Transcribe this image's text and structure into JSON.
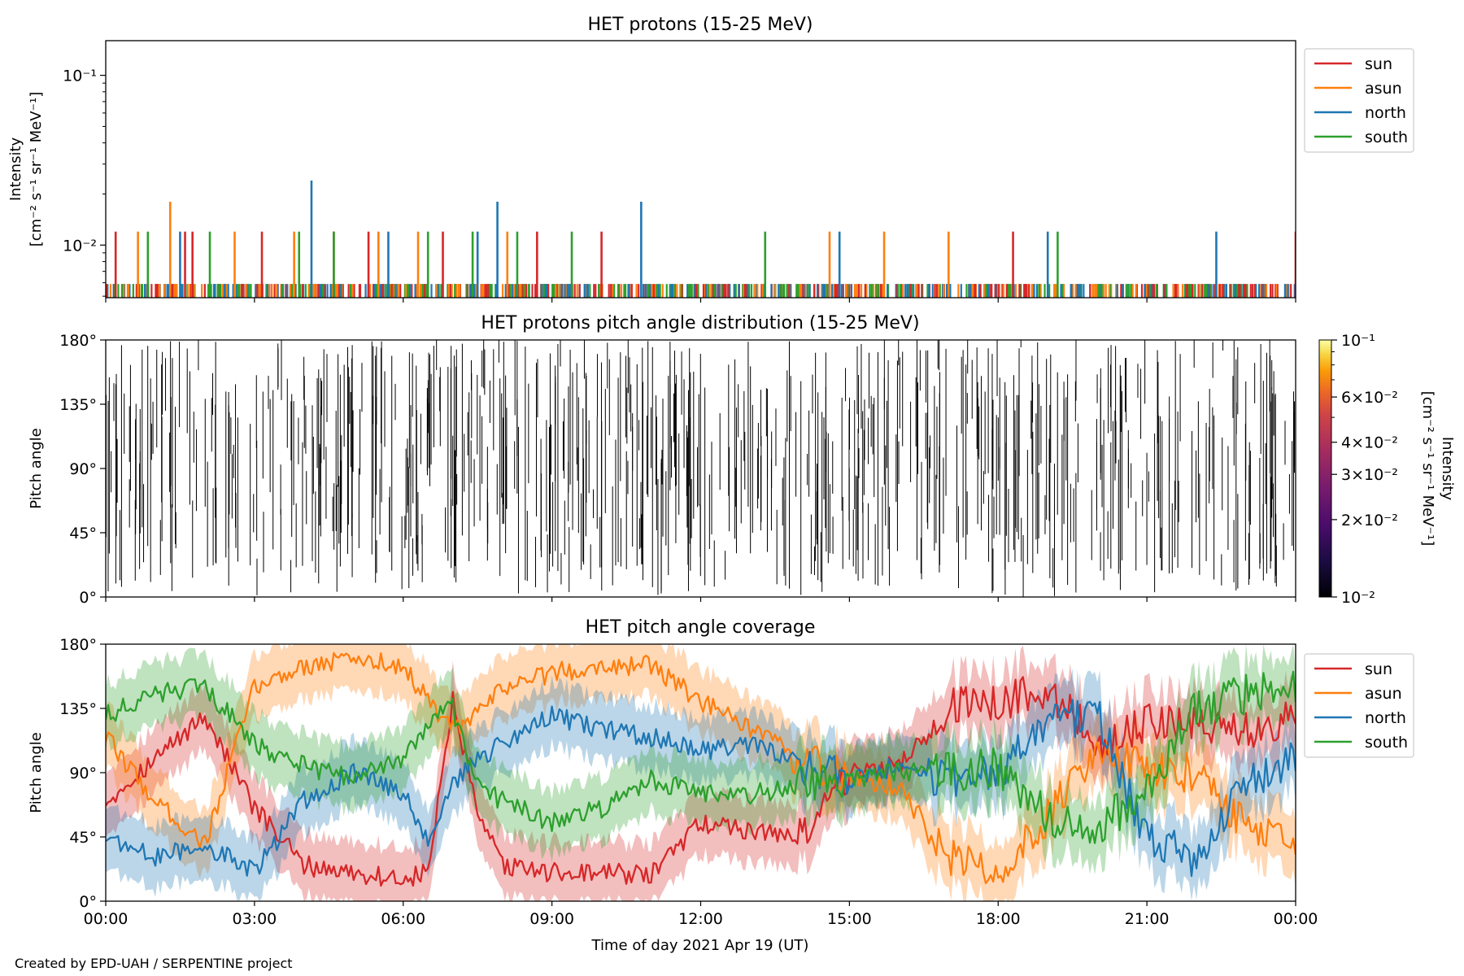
{
  "credit": "Created by EPD-UAH / SERPENTINE project",
  "xlabel": "Time of day 2021 Apr 19 (UT)",
  "xticks": [
    "00:00",
    "03:00",
    "06:00",
    "09:00",
    "12:00",
    "15:00",
    "18:00",
    "21:00",
    "00:00"
  ],
  "colors": {
    "sun": "#d62728",
    "asun": "#ff7f0e",
    "north": "#1f77b4",
    "south": "#2ca02c"
  },
  "chart_data": [
    {
      "type": "line",
      "title": "HET protons (15-25 MeV)",
      "ylabel_line1": "Intensity",
      "ylabel_line2": "[cm⁻² s⁻¹ sr⁻¹ MeV⁻¹]",
      "yscale": "log",
      "ylim": [
        0.0049,
        0.16
      ],
      "yticks": [
        {
          "value": 0.1,
          "label": "10⁻¹"
        },
        {
          "value": 0.01,
          "label": "10⁻²"
        }
      ],
      "x_unit": "hours since 2021 Apr 19 00:00 UT",
      "xlim": [
        0,
        24
      ],
      "baseline": 0.0059,
      "legend": [
        "sun",
        "asun",
        "north",
        "south"
      ],
      "legend_loc": "outside right",
      "spikes": [
        {
          "series": "sun",
          "x": [
            0.2,
            1.6,
            1.75,
            3.15,
            4.6,
            5.3,
            6.8,
            8.7,
            10.0,
            18.3,
            24.0
          ],
          "y": [
            0.012,
            0.012,
            0.012,
            0.012,
            0.012,
            0.012,
            0.012,
            0.012,
            0.012,
            0.012,
            0.012
          ]
        },
        {
          "series": "asun",
          "x": [
            0.65,
            1.3,
            2.6,
            3.8,
            5.5,
            6.3,
            8.1,
            14.6,
            15.7,
            17.0
          ],
          "y": [
            0.012,
            0.018,
            0.012,
            0.012,
            0.012,
            0.012,
            0.012,
            0.012,
            0.012,
            0.012
          ]
        },
        {
          "series": "north",
          "x": [
            1.5,
            4.15,
            5.7,
            7.5,
            7.9,
            10.8,
            14.8,
            19.0,
            22.4
          ],
          "y": [
            0.012,
            0.024,
            0.012,
            0.012,
            0.018,
            0.018,
            0.012,
            0.012,
            0.012
          ]
        },
        {
          "series": "south",
          "x": [
            0.85,
            2.1,
            3.9,
            4.6,
            6.5,
            7.4,
            8.3,
            9.4,
            13.3,
            19.2
          ],
          "y": [
            0.012,
            0.012,
            0.012,
            0.012,
            0.012,
            0.012,
            0.012,
            0.012,
            0.012,
            0.012
          ]
        }
      ]
    },
    {
      "type": "heatmap",
      "title": "HET protons pitch angle distribution (15-25 MeV)",
      "ylabel": "Pitch angle",
      "ylim": [
        0,
        180
      ],
      "yticks": [
        "0°",
        "45°",
        "90°",
        "135°",
        "180°"
      ],
      "xlim": [
        0,
        24
      ],
      "colorbar": {
        "label_line1": "Intensity",
        "label_line2": "[cm⁻² s⁻¹ sr⁻¹ MeV⁻¹]",
        "scale": "log",
        "range": [
          0.01,
          0.1
        ],
        "ticks": [
          {
            "value": 0.1,
            "label": "10⁻¹"
          },
          {
            "value": 0.06,
            "label": "6×10⁻²"
          },
          {
            "value": 0.04,
            "label": "4×10⁻²"
          },
          {
            "value": 0.03,
            "label": "3×10⁻²"
          },
          {
            "value": 0.02,
            "label": "2×10⁻²"
          },
          {
            "value": 0.01,
            "label": "10⁻²"
          }
        ],
        "colormap": "inferno"
      }
    },
    {
      "type": "line",
      "title": "HET pitch angle coverage",
      "ylabel": "Pitch angle",
      "ylim": [
        0,
        180
      ],
      "yticks": [
        "0°",
        "45°",
        "90°",
        "135°",
        "180°"
      ],
      "xlim": [
        0,
        24
      ],
      "legend": [
        "sun",
        "asun",
        "north",
        "south"
      ],
      "legend_loc": "outside right",
      "band_halfwidth_deg": 22,
      "series": [
        {
          "name": "sun",
          "x": [
            0,
            1,
            2,
            3,
            4,
            5,
            6,
            6.5,
            7,
            7.5,
            8,
            9,
            10,
            11,
            12,
            13,
            14,
            15,
            16,
            17,
            18,
            19,
            20,
            21,
            22,
            23,
            24
          ],
          "y": [
            70,
            100,
            130,
            65,
            25,
            20,
            15,
            20,
            140,
            60,
            25,
            20,
            20,
            18,
            55,
            50,
            45,
            90,
            95,
            135,
            140,
            150,
            110,
            125,
            125,
            120,
            130
          ]
        },
        {
          "name": "asun",
          "x": [
            0,
            1,
            2,
            3,
            4,
            5,
            6,
            6.5,
            7,
            7.5,
            8,
            9,
            10,
            11,
            12,
            13,
            14,
            15,
            16,
            17,
            18,
            19,
            20,
            21,
            22,
            23,
            24
          ],
          "y": [
            115,
            70,
            40,
            150,
            165,
            170,
            165,
            140,
            120,
            130,
            150,
            160,
            165,
            165,
            140,
            120,
            100,
            85,
            80,
            30,
            20,
            60,
            110,
            90,
            90,
            50,
            40
          ]
        },
        {
          "name": "north",
          "x": [
            0,
            1,
            2,
            3,
            4,
            5,
            6,
            6.5,
            7,
            7.5,
            8,
            9,
            10,
            11,
            12,
            13,
            14,
            15,
            16,
            17,
            18,
            19,
            20,
            21,
            22,
            23,
            24
          ],
          "y": [
            45,
            30,
            40,
            20,
            70,
            90,
            75,
            45,
            80,
            100,
            110,
            130,
            120,
            115,
            105,
            110,
            95,
            85,
            95,
            85,
            90,
            125,
            130,
            45,
            30,
            80,
            100
          ]
        },
        {
          "name": "south",
          "x": [
            0,
            1,
            2,
            3,
            4,
            5,
            6,
            6.5,
            7,
            7.5,
            8,
            9,
            10,
            11,
            12,
            13,
            14,
            15,
            16,
            17,
            18,
            19,
            20,
            21,
            22,
            23,
            24
          ],
          "y": [
            130,
            145,
            150,
            110,
            95,
            85,
            100,
            125,
            135,
            80,
            70,
            55,
            65,
            85,
            75,
            75,
            80,
            85,
            90,
            90,
            95,
            60,
            50,
            80,
            135,
            145,
            150
          ]
        }
      ]
    }
  ]
}
